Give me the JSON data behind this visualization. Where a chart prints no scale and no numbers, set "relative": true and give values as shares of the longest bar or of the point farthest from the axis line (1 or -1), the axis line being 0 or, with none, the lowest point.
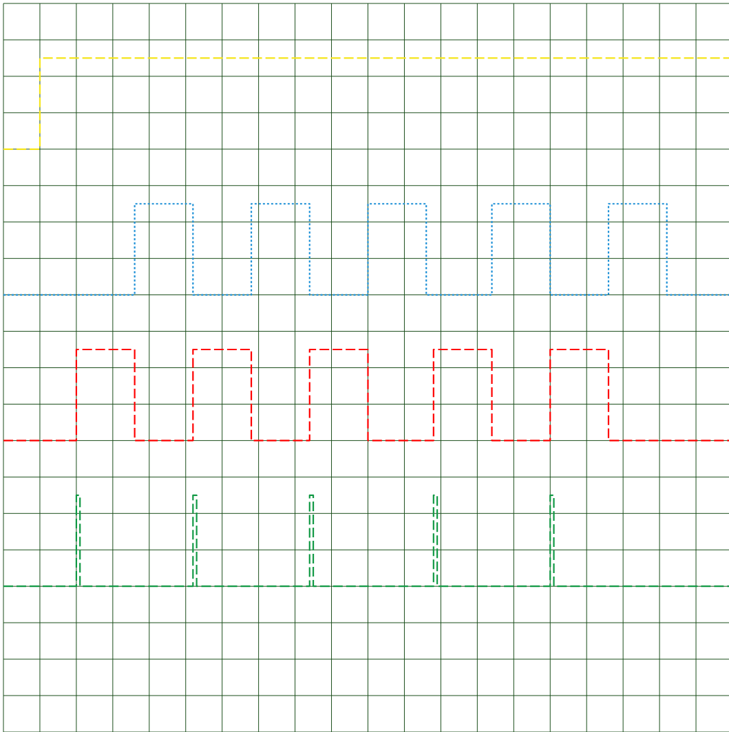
{
  "chart_data": {
    "type": "step",
    "relative": true,
    "grid": true,
    "categories": [
      null,
      null,
      null,
      null,
      null,
      null,
      null,
      null,
      null,
      null,
      null,
      null,
      null,
      null,
      null,
      null,
      null,
      null,
      null,
      null,
      null,
      null,
      null,
      null,
      null,
      null,
      null,
      null,
      null,
      null,
      null,
      null,
      null,
      null,
      null,
      null,
      null,
      null,
      null,
      null,
      null,
      null,
      null,
      null,
      null,
      null,
      null,
      null,
      null,
      null,
      null,
      null,
      null,
      null,
      null,
      null,
      null,
      null,
      null,
      null,
      null,
      null,
      null,
      null,
      null,
      null,
      null,
      null,
      null,
      null,
      null,
      null,
      null,
      null,
      null,
      null,
      null,
      null,
      null,
      null,
      null,
      null,
      null,
      null,
      null,
      null,
      null,
      null,
      null,
      null,
      null,
      null,
      null,
      null,
      null,
      null,
      null,
      null,
      null,
      null,
      null,
      null,
      null,
      null,
      null,
      null,
      null,
      null,
      null,
      null,
      null,
      null,
      null,
      null,
      null,
      null,
      null,
      null,
      null,
      null,
      null,
      null,
      null,
      null,
      null,
      null,
      null,
      null,
      null,
      null,
      null,
      null,
      null,
      null,
      null,
      null,
      null,
      null,
      null,
      null,
      null,
      null,
      null,
      null,
      null,
      null,
      null,
      null,
      null,
      null,
      null,
      null,
      null,
      null,
      null,
      null,
      null,
      null,
      null,
      null,
      null,
      null,
      null,
      null,
      null,
      null,
      null,
      null,
      null,
      null,
      null,
      null,
      null,
      null,
      null,
      null,
      null,
      null,
      null,
      null,
      null,
      null,
      null,
      null,
      null,
      null,
      null,
      null,
      null,
      null,
      null,
      null,
      null,
      null,
      null,
      null,
      null,
      null,
      null,
      null,
      null
    ],
    "series": [
      {
        "color": "#f5e51b",
        "line_style": "dashed",
        "values": [
          0.8276,
          0.8276,
          0.8276,
          0.8276,
          0.8276,
          0.8276,
          0.8276,
          0.8276,
          0.8276,
          0.8276,
          1,
          1,
          1,
          1,
          1,
          1,
          1,
          1,
          1,
          1,
          1,
          1,
          1,
          1,
          1,
          1,
          1,
          1,
          1,
          1,
          1,
          1,
          1,
          1,
          1,
          1,
          1,
          1,
          1,
          1,
          1,
          1,
          1,
          1,
          1,
          1,
          1,
          1,
          1,
          1,
          1,
          1,
          1,
          1,
          1,
          1,
          1,
          1,
          1,
          1,
          1,
          1,
          1,
          1,
          1,
          1,
          1,
          1,
          1,
          1,
          1,
          1,
          1,
          1,
          1,
          1,
          1,
          1,
          1,
          1,
          1,
          1,
          1,
          1,
          1,
          1,
          1,
          1,
          1,
          1,
          1,
          1,
          1,
          1,
          1,
          1,
          1,
          1,
          1,
          1,
          1,
          1,
          1,
          1,
          1,
          1,
          1,
          1,
          1,
          1,
          1,
          1,
          1,
          1,
          1,
          1,
          1,
          1,
          1,
          1,
          1,
          1,
          1,
          1,
          1,
          1,
          1,
          1,
          1,
          1,
          1,
          1,
          1,
          1,
          1,
          1,
          1,
          1,
          1,
          1,
          1,
          1,
          1,
          1,
          1,
          1,
          1,
          1,
          1,
          1,
          1,
          1,
          1,
          1,
          1,
          1,
          1,
          1,
          1,
          1,
          1,
          1,
          1,
          1,
          1,
          1,
          1,
          1,
          1,
          1,
          1,
          1,
          1,
          1,
          1,
          1,
          1,
          1,
          1,
          1,
          1,
          1,
          1,
          1,
          1,
          1,
          1,
          1,
          1,
          1,
          1,
          1,
          1,
          1,
          1,
          1,
          1,
          1,
          1,
          1,
          1
        ]
      },
      {
        "color": "#1b8fd6",
        "line_style": "dotted",
        "values": [
          0.5517,
          0.5517,
          0.5517,
          0.5517,
          0.5517,
          0.5517,
          0.5517,
          0.5517,
          0.5517,
          0.5517,
          0.5517,
          0.5517,
          0.5517,
          0.5517,
          0.5517,
          0.5517,
          0.5517,
          0.5517,
          0.5517,
          0.5517,
          0.5517,
          0.5517,
          0.5517,
          0.5517,
          0.5517,
          0.5517,
          0.5517,
          0.5517,
          0.5517,
          0.5517,
          0.5517,
          0.5517,
          0.5517,
          0.5517,
          0.5517,
          0.5517,
          0.7241,
          0.7241,
          0.7241,
          0.7241,
          0.7241,
          0.7241,
          0.7241,
          0.7241,
          0.7241,
          0.7241,
          0.7241,
          0.7241,
          0.7241,
          0.7241,
          0.7241,
          0.7241,
          0.5517,
          0.5517,
          0.5517,
          0.5517,
          0.5517,
          0.5517,
          0.5517,
          0.5517,
          0.5517,
          0.5517,
          0.5517,
          0.5517,
          0.5517,
          0.5517,
          0.5517,
          0.5517,
          0.7241,
          0.7241,
          0.7241,
          0.7241,
          0.7241,
          0.7241,
          0.7241,
          0.7241,
          0.7241,
          0.7241,
          0.7241,
          0.7241,
          0.7241,
          0.7241,
          0.7241,
          0.7241,
          0.5517,
          0.5517,
          0.5517,
          0.5517,
          0.5517,
          0.5517,
          0.5517,
          0.5517,
          0.5517,
          0.5517,
          0.5517,
          0.5517,
          0.5517,
          0.5517,
          0.5517,
          0.5517,
          0.7241,
          0.7241,
          0.7241,
          0.7241,
          0.7241,
          0.7241,
          0.7241,
          0.7241,
          0.7241,
          0.7241,
          0.7241,
          0.7241,
          0.7241,
          0.7241,
          0.7241,
          0.7241,
          0.5517,
          0.5517,
          0.5517,
          0.5517,
          0.5517,
          0.5517,
          0.5517,
          0.5517,
          0.5517,
          0.5517,
          0.5517,
          0.5517,
          0.5517,
          0.5517,
          0.5517,
          0.5517,
          0.5517,
          0.5517,
          0.7241,
          0.7241,
          0.7241,
          0.7241,
          0.7241,
          0.7241,
          0.7241,
          0.7241,
          0.7241,
          0.7241,
          0.7241,
          0.7241,
          0.7241,
          0.7241,
          0.7241,
          0.7241,
          0.5517,
          0.5517,
          0.5517,
          0.5517,
          0.5517,
          0.5517,
          0.5517,
          0.5517,
          0.5517,
          0.5517,
          0.5517,
          0.5517,
          0.5517,
          0.5517,
          0.5517,
          0.5517,
          0.7241,
          0.7241,
          0.7241,
          0.7241,
          0.7241,
          0.7241,
          0.7241,
          0.7241,
          0.7241,
          0.7241,
          0.7241,
          0.7241,
          0.7241,
          0.7241,
          0.7241,
          0.7241,
          0.5517,
          0.5517,
          0.5517,
          0.5517,
          0.5517,
          0.5517,
          0.5517,
          0.5517,
          0.5517,
          0.5517,
          0.5517,
          0.5517,
          0.5517,
          0.5517,
          0.5517,
          0.5517,
          0.5517,
          0.5517,
          0.5517
        ]
      },
      {
        "color": "#ff0000",
        "line_style": "dashed",
        "values": [
          0.2759,
          0.2759,
          0.2759,
          0.2759,
          0.2759,
          0.2759,
          0.2759,
          0.2759,
          0.2759,
          0.2759,
          0.2759,
          0.2759,
          0.2759,
          0.2759,
          0.2759,
          0.2759,
          0.2759,
          0.2759,
          0.2759,
          0.2759,
          0.4483,
          0.4483,
          0.4483,
          0.4483,
          0.4483,
          0.4483,
          0.4483,
          0.4483,
          0.4483,
          0.4483,
          0.4483,
          0.4483,
          0.4483,
          0.4483,
          0.4483,
          0.4483,
          0.2759,
          0.2759,
          0.2759,
          0.2759,
          0.2759,
          0.2759,
          0.2759,
          0.2759,
          0.2759,
          0.2759,
          0.2759,
          0.2759,
          0.2759,
          0.2759,
          0.2759,
          0.2759,
          0.4483,
          0.4483,
          0.4483,
          0.4483,
          0.4483,
          0.4483,
          0.4483,
          0.4483,
          0.4483,
          0.4483,
          0.4483,
          0.4483,
          0.4483,
          0.4483,
          0.4483,
          0.4483,
          0.2759,
          0.2759,
          0.2759,
          0.2759,
          0.2759,
          0.2759,
          0.2759,
          0.2759,
          0.2759,
          0.2759,
          0.2759,
          0.2759,
          0.2759,
          0.2759,
          0.2759,
          0.2759,
          0.4483,
          0.4483,
          0.4483,
          0.4483,
          0.4483,
          0.4483,
          0.4483,
          0.4483,
          0.4483,
          0.4483,
          0.4483,
          0.4483,
          0.4483,
          0.4483,
          0.4483,
          0.4483,
          0.2759,
          0.2759,
          0.2759,
          0.2759,
          0.2759,
          0.2759,
          0.2759,
          0.2759,
          0.2759,
          0.2759,
          0.2759,
          0.2759,
          0.2759,
          0.2759,
          0.2759,
          0.2759,
          0.2759,
          0.2759,
          0.4483,
          0.4483,
          0.4483,
          0.4483,
          0.4483,
          0.4483,
          0.4483,
          0.4483,
          0.4483,
          0.4483,
          0.4483,
          0.4483,
          0.4483,
          0.4483,
          0.4483,
          0.4483,
          0.2759,
          0.2759,
          0.2759,
          0.2759,
          0.2759,
          0.2759,
          0.2759,
          0.2759,
          0.2759,
          0.2759,
          0.2759,
          0.2759,
          0.2759,
          0.2759,
          0.2759,
          0.2759,
          0.4483,
          0.4483,
          0.4483,
          0.4483,
          0.4483,
          0.4483,
          0.4483,
          0.4483,
          0.4483,
          0.4483,
          0.4483,
          0.4483,
          0.4483,
          0.4483,
          0.4483,
          0.4483,
          0.2759,
          0.2759,
          0.2759,
          0.2759,
          0.2759,
          0.2759,
          0.2759,
          0.2759,
          0.2759,
          0.2759,
          0.2759,
          0.2759,
          0.2759,
          0.2759,
          0.2759,
          0.2759,
          0.2759,
          0.2759,
          0.2759,
          0.2759,
          0.2759,
          0.2759,
          0.2759,
          0.2759,
          0.2759,
          0.2759,
          0.2759,
          0.2759,
          0.2759,
          0.2759,
          0.2759,
          0.2759,
          0.2759,
          0.2759,
          0.2759
        ]
      },
      {
        "color": "#119944",
        "line_style": "dashed",
        "values": [
          0,
          0,
          0,
          0,
          0,
          0,
          0,
          0,
          0,
          0,
          0,
          0,
          0,
          0,
          0,
          0,
          0,
          0,
          0,
          0,
          0.1724,
          0,
          0,
          0,
          0,
          0,
          0,
          0,
          0,
          0,
          0,
          0,
          0,
          0,
          0,
          0,
          0,
          0,
          0,
          0,
          0,
          0,
          0,
          0,
          0,
          0,
          0,
          0,
          0,
          0,
          0,
          0,
          0.1724,
          0,
          0,
          0,
          0,
          0,
          0,
          0,
          0,
          0,
          0,
          0,
          0,
          0,
          0,
          0,
          0,
          0,
          0,
          0,
          0,
          0,
          0,
          0,
          0,
          0,
          0,
          0,
          0,
          0,
          0,
          0,
          0.1724,
          0,
          0,
          0,
          0,
          0,
          0,
          0,
          0,
          0,
          0,
          0,
          0,
          0,
          0,
          0,
          0,
          0,
          0,
          0,
          0,
          0,
          0,
          0,
          0,
          0,
          0,
          0,
          0,
          0,
          0,
          0,
          0,
          0,
          0.1724,
          0,
          0,
          0,
          0,
          0,
          0,
          0,
          0,
          0,
          0,
          0,
          0,
          0,
          0,
          0,
          0,
          0,
          0,
          0,
          0,
          0,
          0,
          0,
          0,
          0,
          0,
          0,
          0,
          0,
          0,
          0,
          0.1724,
          0,
          0,
          0,
          0,
          0,
          0,
          0,
          0,
          0,
          0,
          0,
          0,
          0,
          0,
          0,
          0,
          0,
          0,
          0,
          0,
          0,
          0,
          0,
          0,
          0,
          0,
          0,
          0,
          0,
          0,
          0,
          0,
          0,
          0,
          0,
          0,
          0,
          0,
          0,
          0,
          0,
          0,
          0,
          0,
          0,
          0,
          0,
          0,
          0,
          0
        ]
      }
    ]
  }
}
